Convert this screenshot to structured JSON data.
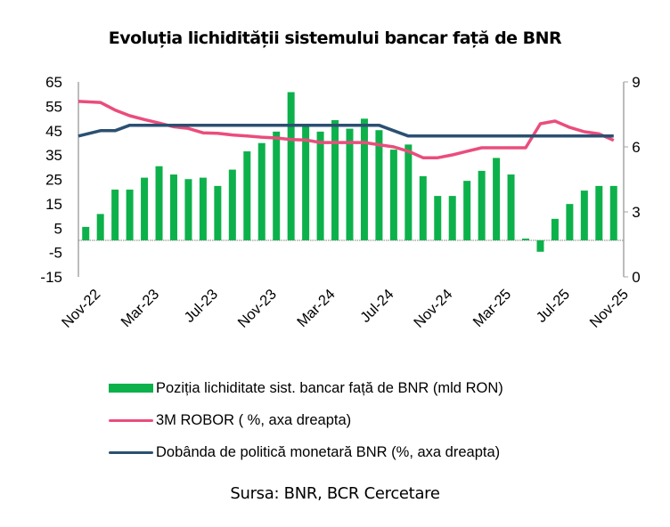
{
  "title": "Evoluția lichidității sistemului bancar față de BNR",
  "source": "Sursa: BNR, BCR Cercetare",
  "colors": {
    "liquidity": "#0db14b",
    "robor": "#ea4d7c",
    "policy": "#2b5072",
    "axis": "#a6a6a6"
  },
  "legend": [
    {
      "label": "Poziția lichiditate sist. bancar față de BNR (mld RON)",
      "type": "bar",
      "color": "#0db14b"
    },
    {
      "label": "3M ROBOR ( %, axa dreapta)",
      "type": "line",
      "color": "#ea4d7c"
    },
    {
      "label": "Dobânda de politică monetară BNR (%, axa dreapta)",
      "type": "line",
      "color": "#2b5072"
    }
  ],
  "chart_data": {
    "type": "bar",
    "title": "Evoluția lichidității sistemului bancar față de BNR",
    "xlabel": "",
    "ylabel": "",
    "ylim": [
      -15,
      65
    ],
    "y_ticks": [
      -15,
      -5,
      5,
      15,
      25,
      35,
      45,
      55,
      65
    ],
    "y2lim": [
      0,
      9
    ],
    "y2_ticks": [
      0,
      3,
      6,
      9
    ],
    "x_tick_labels": [
      "Nov-22",
      "Mar-23",
      "Jul-23",
      "Nov-23",
      "Mar-24",
      "Jul-24",
      "Nov-24",
      "Mar-25",
      "Jul-25",
      "Nov-25"
    ],
    "categories": [
      "Nov-22",
      "Dec-22",
      "Jan-23",
      "Feb-23",
      "Mar-23",
      "Apr-23",
      "May-23",
      "Jun-23",
      "Jul-23",
      "Aug-23",
      "Sep-23",
      "Oct-23",
      "Nov-23",
      "Dec-23",
      "Jan-24",
      "Feb-24",
      "Mar-24",
      "Apr-24",
      "May-24",
      "Jun-24",
      "Jul-24",
      "Aug-24",
      "Sep-24",
      "Oct-24",
      "Nov-24",
      "Dec-24",
      "Jan-25",
      "Feb-25",
      "Mar-25",
      "Apr-25",
      "May-25",
      "Jun-25",
      "Jul-25",
      "Aug-25",
      "Sep-25",
      "Oct-25",
      "Nov-25"
    ],
    "series": [
      {
        "name": "Poziția lichiditate sist. bancar față de BNR (mld RON)",
        "type": "bar",
        "axis": "left",
        "values": [
          5.5,
          10.8,
          20.8,
          20.8,
          25.7,
          30.4,
          27.0,
          25.1,
          25.7,
          22.3,
          29.0,
          36.5,
          39.9,
          44.6,
          60.8,
          47.0,
          44.6,
          49.3,
          45.8,
          49.9,
          45.2,
          37.2,
          39.3,
          26.3,
          18.2,
          18.2,
          24.4,
          28.5,
          33.8,
          27.0,
          0.7,
          -4.7,
          8.8,
          14.9,
          20.4,
          22.3,
          22.3
        ]
      },
      {
        "name": "3M ROBOR ( %, axa dreapta)",
        "type": "line",
        "axis": "right",
        "values": [
          8.1,
          8.05,
          7.7,
          7.44,
          7.26,
          7.1,
          6.93,
          6.85,
          6.65,
          6.63,
          6.55,
          6.5,
          6.45,
          6.41,
          6.34,
          6.32,
          6.2,
          6.2,
          6.2,
          6.2,
          6.1,
          6.0,
          5.8,
          5.5,
          5.5,
          5.63,
          5.8,
          5.96,
          5.96,
          5.96,
          5.96,
          7.07,
          7.19,
          6.9,
          6.7,
          6.6,
          6.3
        ]
      },
      {
        "name": "Dobânda de politică monetară BNR (%, axa dreapta)",
        "type": "line",
        "axis": "right",
        "values": [
          6.5,
          6.75,
          6.75,
          7.0,
          7.0,
          7.0,
          7.0,
          7.0,
          7.0,
          7.0,
          7.0,
          7.0,
          7.0,
          7.0,
          7.0,
          7.0,
          7.0,
          7.0,
          7.0,
          7.0,
          7.0,
          6.75,
          6.5,
          6.5,
          6.5,
          6.5,
          6.5,
          6.5,
          6.5,
          6.5,
          6.5,
          6.5,
          6.5,
          6.5,
          6.5,
          6.5,
          6.5
        ]
      }
    ],
    "grid": false,
    "legend_position": "bottom"
  }
}
